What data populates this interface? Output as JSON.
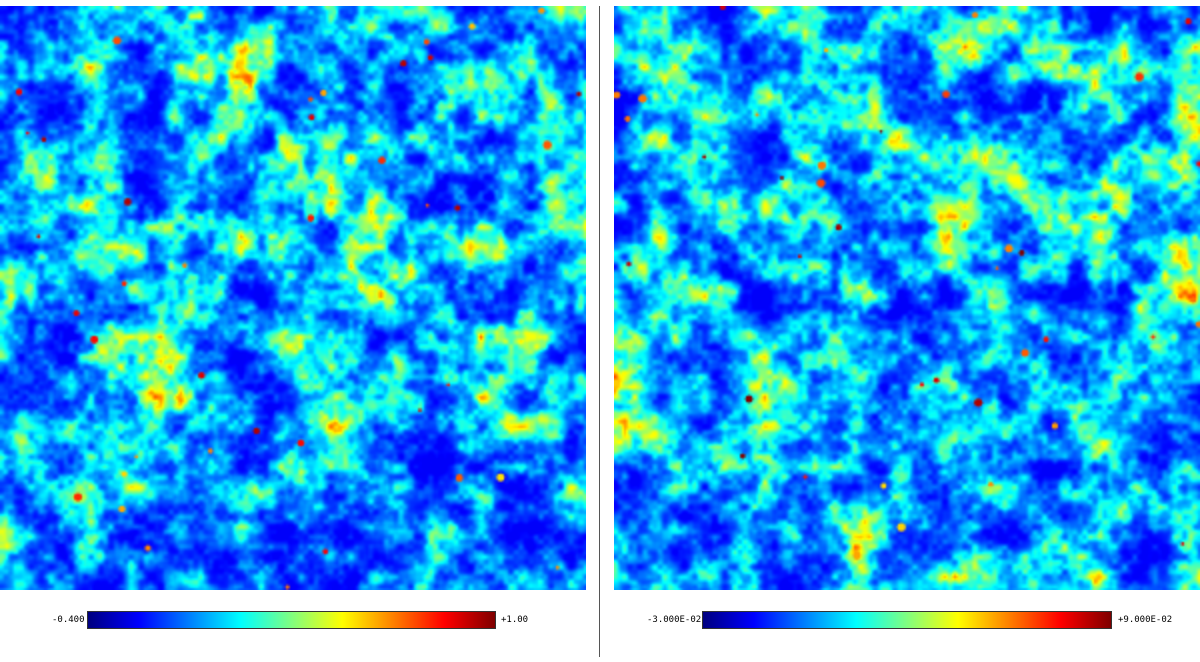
{
  "colormap": [
    "#00007f",
    "#0000ff",
    "#0080ff",
    "#00ffff",
    "#80ff80",
    "#ffff00",
    "#ff8000",
    "#ff0000",
    "#7f0000"
  ],
  "panels": [
    {
      "colorbar_min": "-0.400",
      "colorbar_max": "+1.00"
    },
    {
      "colorbar_min": "-3.000E-02",
      "colorbar_max": "+9.000E-02"
    }
  ]
}
